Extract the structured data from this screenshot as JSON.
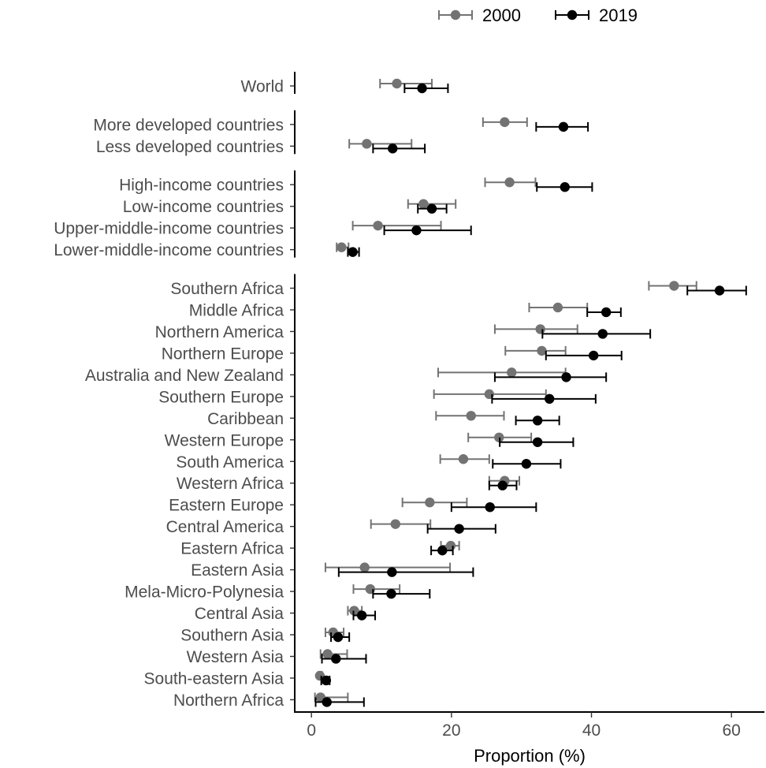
{
  "chart_data": {
    "type": "scatter",
    "subtype": "dot-with-error-bars",
    "title": "",
    "xlabel": "Proportion (%)",
    "ylabel": "",
    "xlim": [
      -1.5,
      66
    ],
    "xticks": [
      0,
      20,
      40,
      60
    ],
    "grid": false,
    "legend_position": "top",
    "groups": [
      [
        "World"
      ],
      [
        "More developed countries",
        "Less developed countries"
      ],
      [
        "High-income countries",
        "Low-income countries",
        "Upper-middle-income countries",
        "Lower-middle-income countries"
      ],
      [
        "Southern Africa",
        "Middle Africa",
        "Northern America",
        "Northern Europe",
        "Australia and New Zealand",
        "Southern Europe",
        "Caribbean",
        "Western Europe",
        "South America",
        "Western Africa",
        "Eastern Europe",
        "Central America",
        "Eastern Africa",
        "Eastern Asia",
        "Mela-Micro-Polynesia",
        "Central Asia",
        "Southern Asia",
        "Western Asia",
        "South-eastern Asia",
        "Northern Africa"
      ]
    ],
    "series": [
      {
        "name": "2000",
        "color": "#737373",
        "points": [
          {
            "category": "World",
            "value": 12.2,
            "lo": 9.8,
            "hi": 17.2
          },
          {
            "category": "More developed countries",
            "value": 27.6,
            "lo": 24.5,
            "hi": 30.8
          },
          {
            "category": "Less developed countries",
            "value": 7.9,
            "lo": 5.4,
            "hi": 14.3
          },
          {
            "category": "High-income countries",
            "value": 28.3,
            "lo": 24.8,
            "hi": 32.0
          },
          {
            "category": "Low-income countries",
            "value": 16.0,
            "lo": 13.8,
            "hi": 20.6
          },
          {
            "category": "Upper-middle-income countries",
            "value": 9.5,
            "lo": 5.9,
            "hi": 18.5
          },
          {
            "category": "Lower-middle-income countries",
            "value": 4.3,
            "lo": 3.6,
            "hi": 5.3
          },
          {
            "category": "Southern Africa",
            "value": 51.8,
            "lo": 48.2,
            "hi": 55.0
          },
          {
            "category": "Middle Africa",
            "value": 35.2,
            "lo": 31.1,
            "hi": 39.4
          },
          {
            "category": "Northern America",
            "value": 32.7,
            "lo": 26.2,
            "hi": 38.0
          },
          {
            "category": "Northern Europe",
            "value": 32.9,
            "lo": 27.7,
            "hi": 36.3
          },
          {
            "category": "Australia and New Zealand",
            "value": 28.6,
            "lo": 18.1,
            "hi": 36.3
          },
          {
            "category": "Southern Europe",
            "value": 25.4,
            "lo": 17.5,
            "hi": 33.5
          },
          {
            "category": "Caribbean",
            "value": 22.8,
            "lo": 17.8,
            "hi": 27.5
          },
          {
            "category": "Western Europe",
            "value": 26.8,
            "lo": 22.4,
            "hi": 31.4
          },
          {
            "category": "South America",
            "value": 21.7,
            "lo": 18.4,
            "hi": 25.4
          },
          {
            "category": "Western Africa",
            "value": 27.6,
            "lo": 25.4,
            "hi": 29.7
          },
          {
            "category": "Eastern Europe",
            "value": 16.9,
            "lo": 13.0,
            "hi": 22.2
          },
          {
            "category": "Central America",
            "value": 12.0,
            "lo": 8.5,
            "hi": 17.0
          },
          {
            "category": "Eastern Africa",
            "value": 19.9,
            "lo": 18.5,
            "hi": 21.1
          },
          {
            "category": "Eastern Asia",
            "value": 7.6,
            "lo": 2.0,
            "hi": 19.8
          },
          {
            "category": "Mela-Micro-Polynesia",
            "value": 8.4,
            "lo": 6.0,
            "hi": 12.6
          },
          {
            "category": "Central Asia",
            "value": 6.1,
            "lo": 5.2,
            "hi": 7.2
          },
          {
            "category": "Southern Asia",
            "value": 3.1,
            "lo": 2.0,
            "hi": 4.6
          },
          {
            "category": "Western Asia",
            "value": 2.3,
            "lo": 1.3,
            "hi": 5.1
          },
          {
            "category": "South-eastern Asia",
            "value": 1.2,
            "lo": 1.0,
            "hi": 1.5
          },
          {
            "category": "Northern Africa",
            "value": 1.3,
            "lo": 0.5,
            "hi": 5.2
          }
        ]
      },
      {
        "name": "2019",
        "color": "#000000",
        "points": [
          {
            "category": "World",
            "value": 15.8,
            "lo": 13.3,
            "hi": 19.5
          },
          {
            "category": "More developed countries",
            "value": 36.0,
            "lo": 32.1,
            "hi": 39.5
          },
          {
            "category": "Less developed countries",
            "value": 11.6,
            "lo": 8.8,
            "hi": 16.2
          },
          {
            "category": "High-income countries",
            "value": 36.2,
            "lo": 32.2,
            "hi": 40.1
          },
          {
            "category": "Low-income countries",
            "value": 17.2,
            "lo": 15.2,
            "hi": 19.3
          },
          {
            "category": "Upper-middle-income countries",
            "value": 15.0,
            "lo": 10.4,
            "hi": 22.8
          },
          {
            "category": "Lower-middle-income countries",
            "value": 5.9,
            "lo": 5.2,
            "hi": 6.8
          },
          {
            "category": "Southern Africa",
            "value": 58.3,
            "lo": 53.7,
            "hi": 62.1
          },
          {
            "category": "Middle Africa",
            "value": 42.1,
            "lo": 39.4,
            "hi": 44.2
          },
          {
            "category": "Northern America",
            "value": 41.6,
            "lo": 33.0,
            "hi": 48.4
          },
          {
            "category": "Northern Europe",
            "value": 40.3,
            "lo": 33.5,
            "hi": 44.3
          },
          {
            "category": "Australia and New Zealand",
            "value": 36.4,
            "lo": 26.2,
            "hi": 42.1
          },
          {
            "category": "Southern Europe",
            "value": 34.0,
            "lo": 25.8,
            "hi": 40.6
          },
          {
            "category": "Caribbean",
            "value": 32.3,
            "lo": 29.2,
            "hi": 35.4
          },
          {
            "category": "Western Europe",
            "value": 32.3,
            "lo": 26.9,
            "hi": 37.4
          },
          {
            "category": "South America",
            "value": 30.7,
            "lo": 25.9,
            "hi": 35.6
          },
          {
            "category": "Western Africa",
            "value": 27.3,
            "lo": 25.4,
            "hi": 29.3
          },
          {
            "category": "Eastern Europe",
            "value": 25.5,
            "lo": 20.0,
            "hi": 32.1
          },
          {
            "category": "Central America",
            "value": 21.1,
            "lo": 16.6,
            "hi": 26.3
          },
          {
            "category": "Eastern Africa",
            "value": 18.7,
            "lo": 17.1,
            "hi": 20.2
          },
          {
            "category": "Eastern Asia",
            "value": 11.5,
            "lo": 3.9,
            "hi": 23.1
          },
          {
            "category": "Mela-Micro-Polynesia",
            "value": 11.4,
            "lo": 8.8,
            "hi": 16.9
          },
          {
            "category": "Central Asia",
            "value": 7.2,
            "lo": 6.0,
            "hi": 9.1
          },
          {
            "category": "Southern Asia",
            "value": 3.8,
            "lo": 2.8,
            "hi": 5.4
          },
          {
            "category": "Western Asia",
            "value": 3.5,
            "lo": 1.5,
            "hi": 7.8
          },
          {
            "category": "South-eastern Asia",
            "value": 2.1,
            "lo": 1.4,
            "hi": 2.6
          },
          {
            "category": "Northern Africa",
            "value": 2.2,
            "lo": 0.6,
            "hi": 7.5
          }
        ]
      }
    ]
  }
}
